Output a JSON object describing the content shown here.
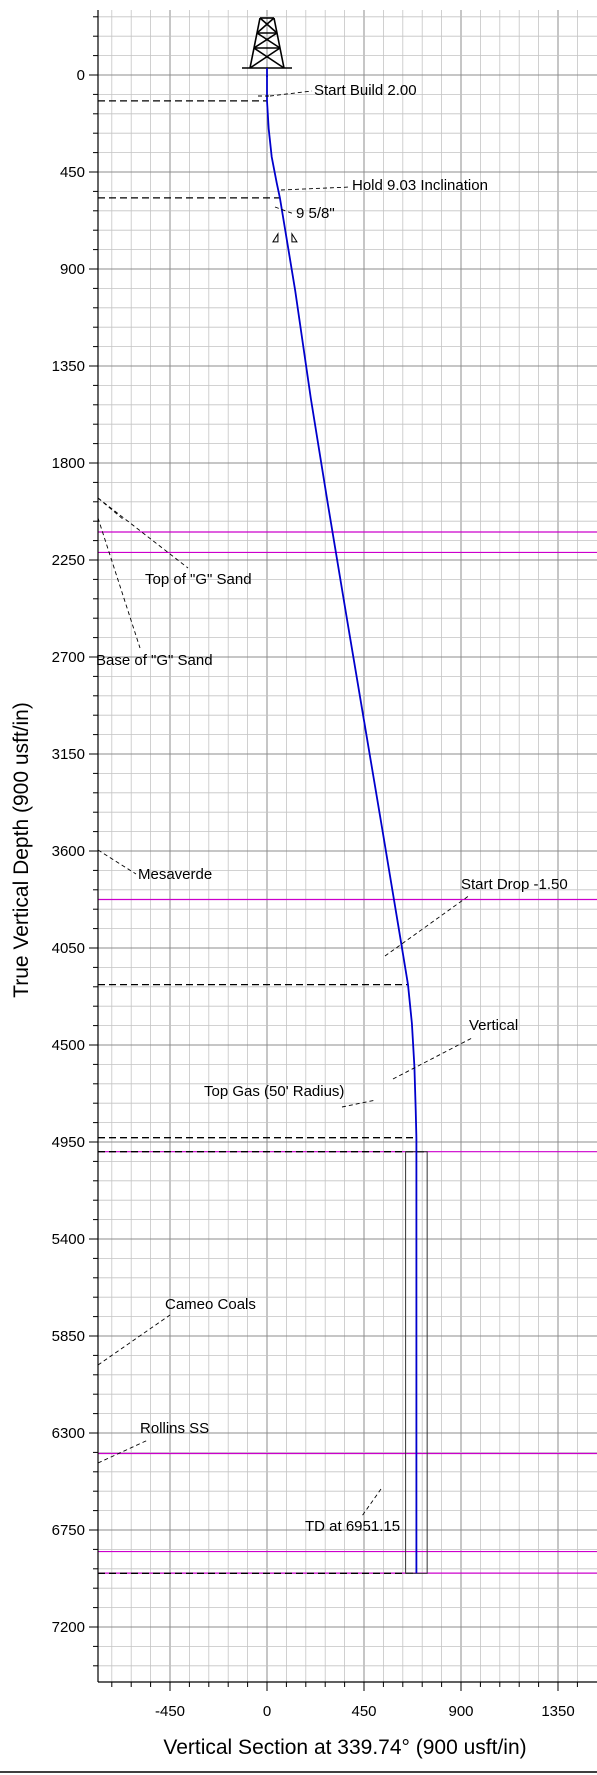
{
  "chart_data": {
    "type": "line",
    "title": "",
    "xlabel": "Vertical Section at 339.74° (900 usft/in)",
    "ylabel": "True Vertical Depth (900 usft/in)",
    "xlim": [
      -780,
      1500
    ],
    "ylim": [
      -300,
      7600
    ],
    "y_inverted": true,
    "grid": true,
    "x_ticks": [
      -450,
      0,
      450,
      900,
      1350
    ],
    "y_ticks": [
      0,
      450,
      900,
      1350,
      1800,
      2250,
      2700,
      3150,
      3600,
      4050,
      4500,
      4950,
      5400,
      5850,
      6300,
      6750,
      7200
    ],
    "colors": {
      "wellpath": "#0000cc",
      "formation": "#cc00cc",
      "grid": "#9a9a9a",
      "casing": "#000000"
    },
    "series": [
      {
        "values": [
          {
            "x": 0,
            "y": 0
          },
          {
            "x": 0,
            "y": 120
          },
          {
            "x": 8,
            "y": 250
          },
          {
            "x": 22,
            "y": 380
          },
          {
            "x": 45,
            "y": 500
          },
          {
            "x": 60,
            "y": 570
          },
          {
            "x": 131,
            "y": 1000
          },
          {
            "x": 203,
            "y": 1500
          },
          {
            "x": 284,
            "y": 2000
          },
          {
            "x": 367,
            "y": 2500
          },
          {
            "x": 451,
            "y": 3000
          },
          {
            "x": 535,
            "y": 3500
          },
          {
            "x": 618,
            "y": 4000
          },
          {
            "x": 654,
            "y": 4220
          },
          {
            "x": 672,
            "y": 4400
          },
          {
            "x": 684,
            "y": 4600
          },
          {
            "x": 690,
            "y": 4800
          },
          {
            "x": 693,
            "y": 4930
          },
          {
            "x": 693,
            "y": 6951
          }
        ]
      }
    ],
    "formations": [
      {
        "tvd": 2120,
        "label": ""
      },
      {
        "tvd": 2215,
        "label": ""
      },
      {
        "tvd": 3825,
        "label": ""
      },
      {
        "tvd": 4995,
        "label": ""
      },
      {
        "tvd": 6395,
        "label": ""
      },
      {
        "tvd": 6850,
        "label": ""
      },
      {
        "tvd": 6950,
        "label": ""
      }
    ],
    "annotations": [
      {
        "text": "Start Build 2.00",
        "tvd": 120,
        "x": 0
      },
      {
        "text": "Hold 9.03 Inclination",
        "tvd": 570,
        "x": 60
      },
      {
        "text": "9 5/8\"",
        "tvd": 640,
        "x": 72
      },
      {
        "text": "Top of \"G\" Sand",
        "tvd": 2120,
        "x": -780
      },
      {
        "text": "Base of \"G\" Sand",
        "tvd": 2215,
        "x": -780
      },
      {
        "text": "Mesaverde",
        "tvd": 3825,
        "x": -780
      },
      {
        "text": "Start Drop -1.50",
        "tvd": 4220,
        "x": 654
      },
      {
        "text": "Vertical",
        "tvd": 4930,
        "x": 693
      },
      {
        "text": "Top Gas (50' Radius)",
        "tvd": 4995,
        "x": 693
      },
      {
        "text": "Cameo Coals",
        "tvd": 6395,
        "x": -780
      },
      {
        "text": "Rollins SS",
        "tvd": 6850,
        "x": -780
      },
      {
        "text": "TD at 6951.15",
        "tvd": 6951,
        "x": 693
      }
    ],
    "target_box": {
      "x_min": 643,
      "x_max": 743,
      "tvd_top": 4995,
      "tvd_bottom": 6951
    }
  }
}
